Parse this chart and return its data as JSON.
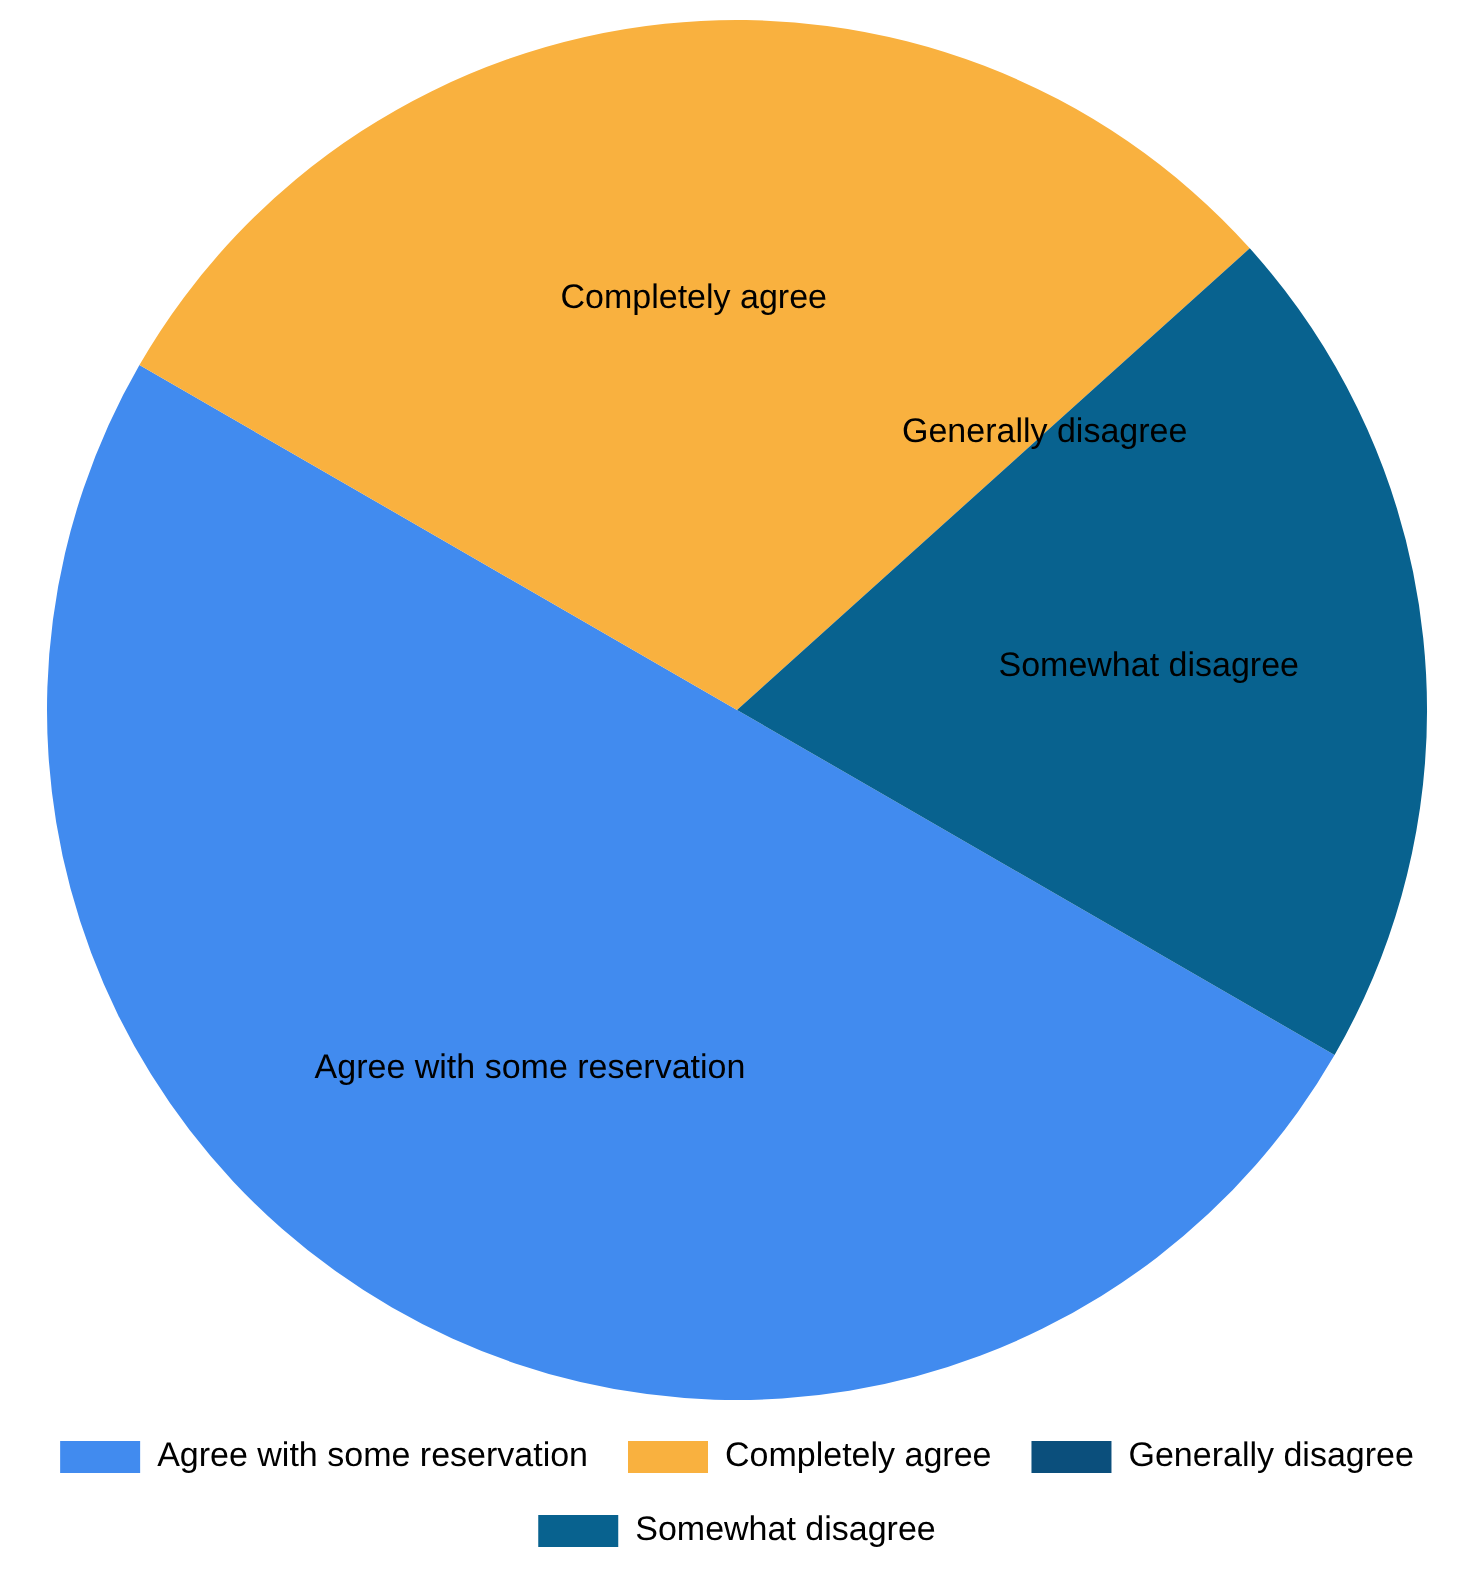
{
  "chart_data": {
    "type": "pie",
    "categories": [
      "Agree with some reservation",
      "Completely agree",
      "Generally disagree",
      "Somewhat disagree"
    ],
    "values": [
      50,
      30,
      0,
      20
    ],
    "colors": [
      "#418bef",
      "#f9b13f",
      "#0b4f7c",
      "#08628f"
    ],
    "legend": "bottom"
  }
}
